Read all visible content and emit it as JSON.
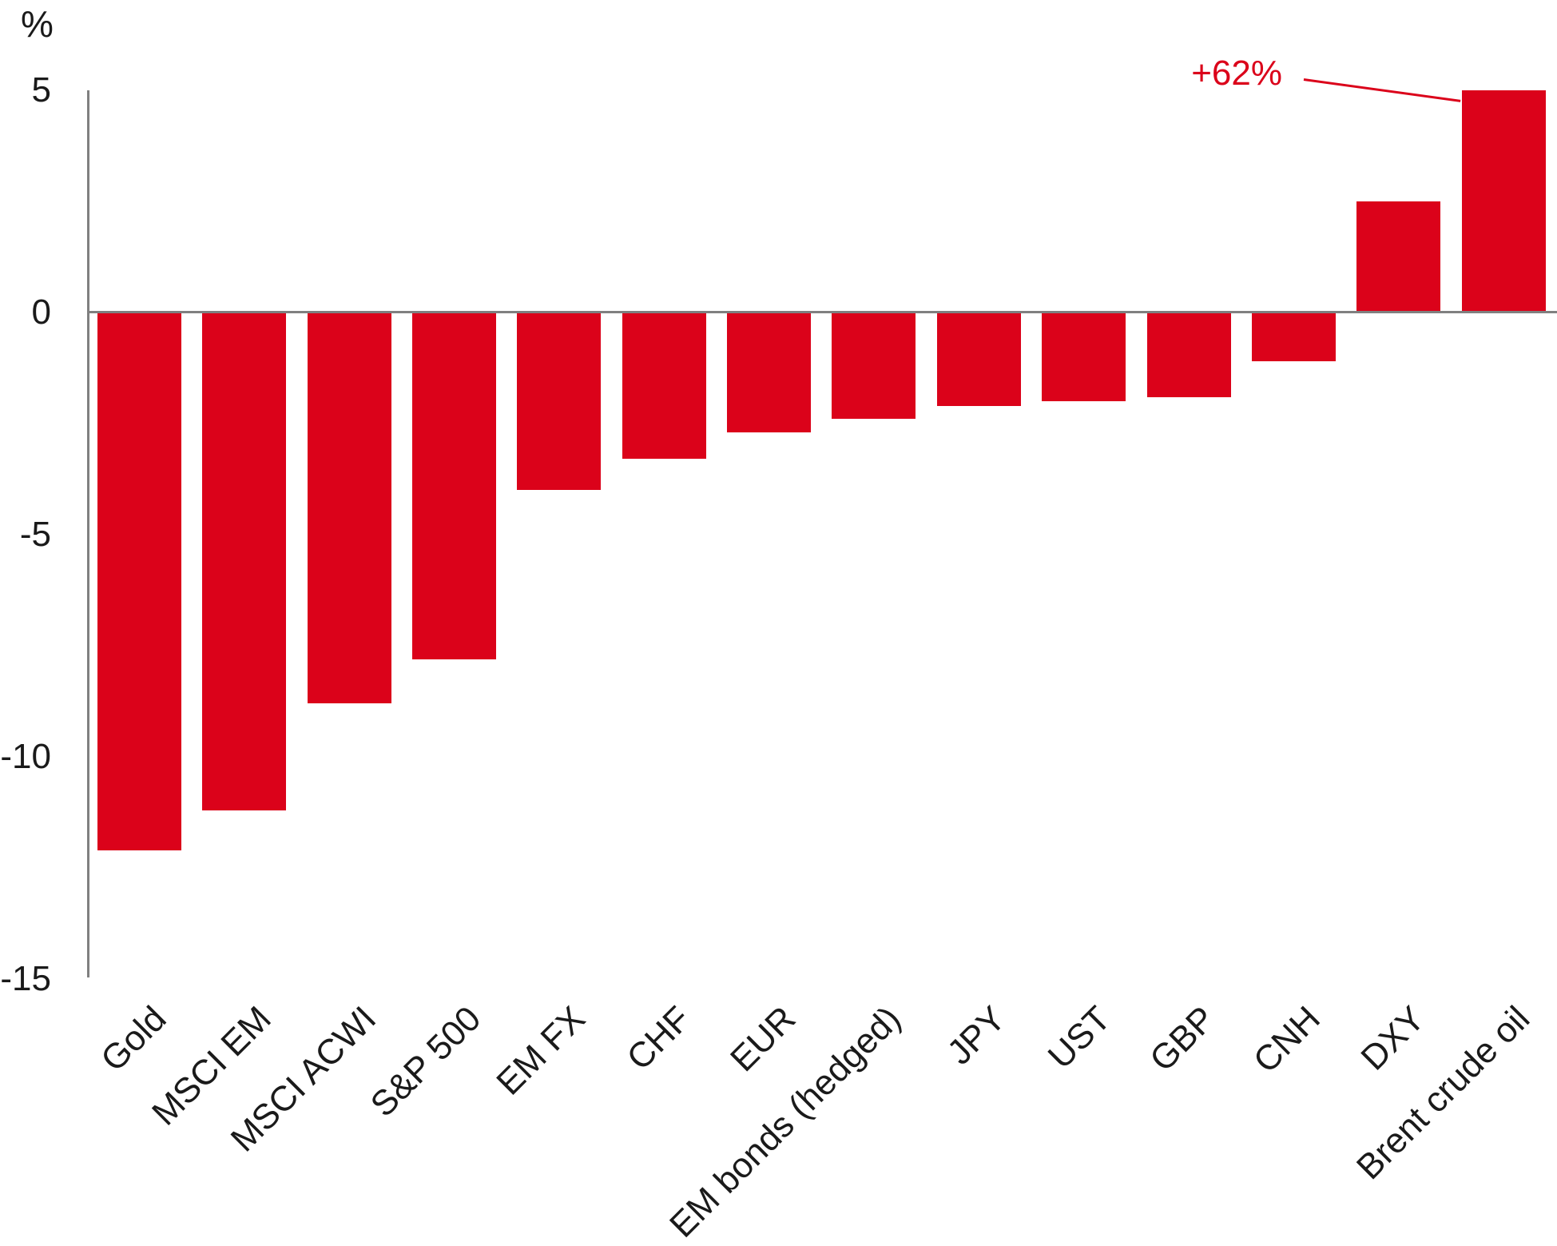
{
  "chart_data": {
    "type": "bar",
    "title": "",
    "unit_label": "%",
    "categories": [
      "Gold",
      "MSCI EM",
      "MSCI ACWI",
      "S&P 500",
      "EM FX",
      "CHF",
      "EUR",
      "EM bonds (hedged)",
      "JPY",
      "UST",
      "GBP",
      "CNH",
      "DXY",
      "Brent crude oil"
    ],
    "values": [
      -12.1,
      -11.2,
      -8.8,
      -7.8,
      -4.0,
      -3.3,
      -2.7,
      -2.4,
      -2.1,
      -2.0,
      -1.9,
      -1.1,
      2.5,
      62
    ],
    "ylim": [
      -15,
      5
    ],
    "yticks": [
      5,
      0,
      -5,
      -10,
      -15
    ],
    "grid": false,
    "legend": "none",
    "bar_color": "#db021a",
    "axis_color": "#808080",
    "text_color": "#1a1a1a",
    "clip": {
      "category": "Brent crude oil",
      "display_cap": 5
    },
    "annotation": {
      "text": "+62%",
      "target_category": "Brent crude oil",
      "color": "#db021a"
    }
  }
}
